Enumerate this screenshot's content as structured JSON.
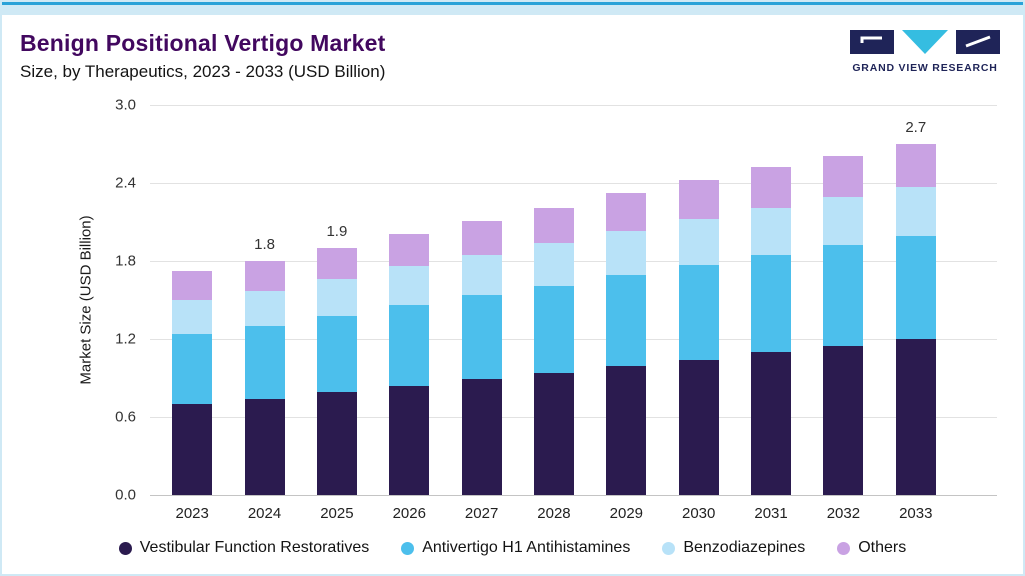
{
  "page": {
    "background": "#ffffff",
    "frame_color": "#cfe9f5",
    "top_line_color": "#2aa2d8"
  },
  "header": {
    "title": "Benign Positional Vertigo Market",
    "subtitle": "Size, by Therapeutics, 2023 - 2033 (USD Billion)",
    "title_color": "#42085f",
    "logo_text": "GRAND VIEW RESEARCH",
    "logo_navy": "#1f2458",
    "logo_cyan": "#35bde1"
  },
  "chart_data": {
    "type": "bar",
    "stacked": true,
    "title": "Benign Positional Vertigo Market Size, by Therapeutics, 2023 - 2033 (USD Billion)",
    "xlabel": "",
    "ylabel": "Market Size (USD Billion)",
    "ylim": [
      0.0,
      3.0
    ],
    "yticks": [
      0.0,
      0.6,
      1.2,
      1.8,
      2.4,
      3.0
    ],
    "grid": true,
    "legend_position": "bottom",
    "categories": [
      "2023",
      "2024",
      "2025",
      "2026",
      "2027",
      "2028",
      "2029",
      "2030",
      "2031",
      "2032",
      "2033"
    ],
    "series": [
      {
        "name": "Vestibular Function Restoratives",
        "color": "#2b1b4f",
        "values": [
          0.7,
          0.74,
          0.79,
          0.84,
          0.89,
          0.94,
          0.99,
          1.04,
          1.1,
          1.15,
          1.2
        ]
      },
      {
        "name": "Antivertigo H1 Antihistamines",
        "color": "#4cbfec",
        "values": [
          0.54,
          0.56,
          0.59,
          0.62,
          0.65,
          0.67,
          0.7,
          0.73,
          0.75,
          0.77,
          0.79
        ]
      },
      {
        "name": "Benzodiazepines",
        "color": "#b8e2f8",
        "values": [
          0.26,
          0.27,
          0.28,
          0.3,
          0.31,
          0.33,
          0.34,
          0.35,
          0.36,
          0.37,
          0.38
        ]
      },
      {
        "name": "Others",
        "color": "#c9a2e3",
        "values": [
          0.22,
          0.23,
          0.24,
          0.25,
          0.26,
          0.27,
          0.29,
          0.3,
          0.31,
          0.32,
          0.33
        ]
      }
    ],
    "totals": [
      1.72,
      1.8,
      1.9,
      2.01,
      2.11,
      2.21,
      2.32,
      2.42,
      2.52,
      2.61,
      2.7
    ],
    "bar_labels": [
      "",
      "1.8",
      "1.9",
      "",
      "",
      "",
      "",
      "",
      "",
      "",
      "2.7"
    ]
  }
}
